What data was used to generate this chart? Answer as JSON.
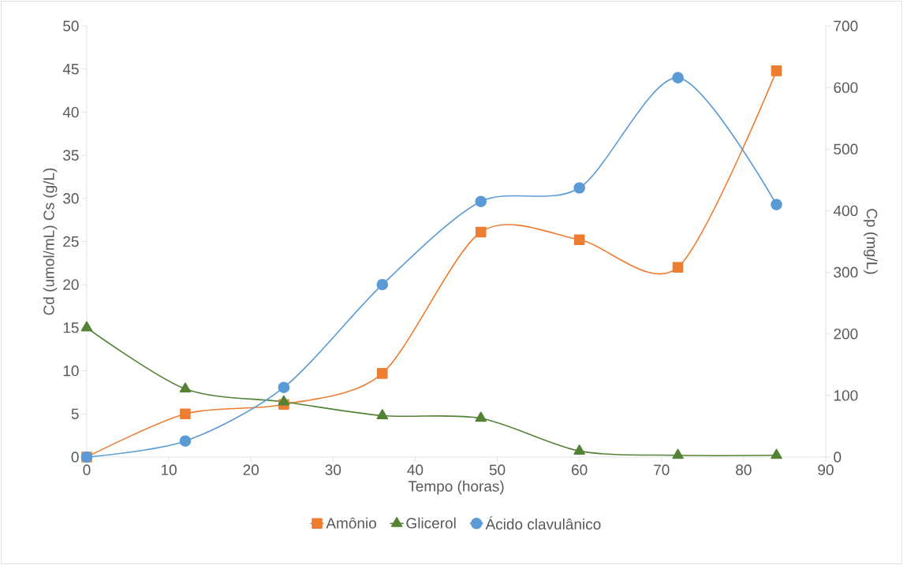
{
  "chart_data": {
    "type": "line",
    "xlabel": "Tempo (horas)",
    "ylabel": "Cd (umol/mL) Cs (g/L)",
    "y2label": "Cp (mg/L)",
    "x": [
      0,
      12,
      24,
      36,
      48,
      60,
      72,
      84
    ],
    "series": [
      {
        "name": "Amônio",
        "color": "#ed7d31",
        "marker": "square",
        "values": [
          0,
          5.0,
          6.1,
          9.7,
          26.1,
          25.2,
          22.0,
          44.8
        ]
      },
      {
        "name": "Glicerol",
        "color": "#548235",
        "marker": "triangle",
        "values": [
          15.0,
          7.9,
          6.4,
          4.8,
          4.5,
          0.7,
          0.2,
          0.2
        ]
      },
      {
        "name": "Ácido clavulânico",
        "color": "#5b9bd5",
        "marker": "circle",
        "axis": "y2",
        "values": [
          0,
          26,
          113,
          280,
          415,
          437,
          616,
          410
        ]
      }
    ],
    "xlim": [
      0,
      90
    ],
    "xticks": [
      0,
      10,
      20,
      30,
      40,
      50,
      60,
      70,
      80,
      90
    ],
    "ylim": [
      0,
      50
    ],
    "yticks": [
      0,
      5,
      10,
      15,
      20,
      25,
      30,
      35,
      40,
      45,
      50
    ],
    "y2lim": [
      0,
      700
    ],
    "y2ticks": [
      0,
      100,
      200,
      300,
      400,
      500,
      600,
      700
    ],
    "grid": false,
    "legend": "bottom"
  }
}
